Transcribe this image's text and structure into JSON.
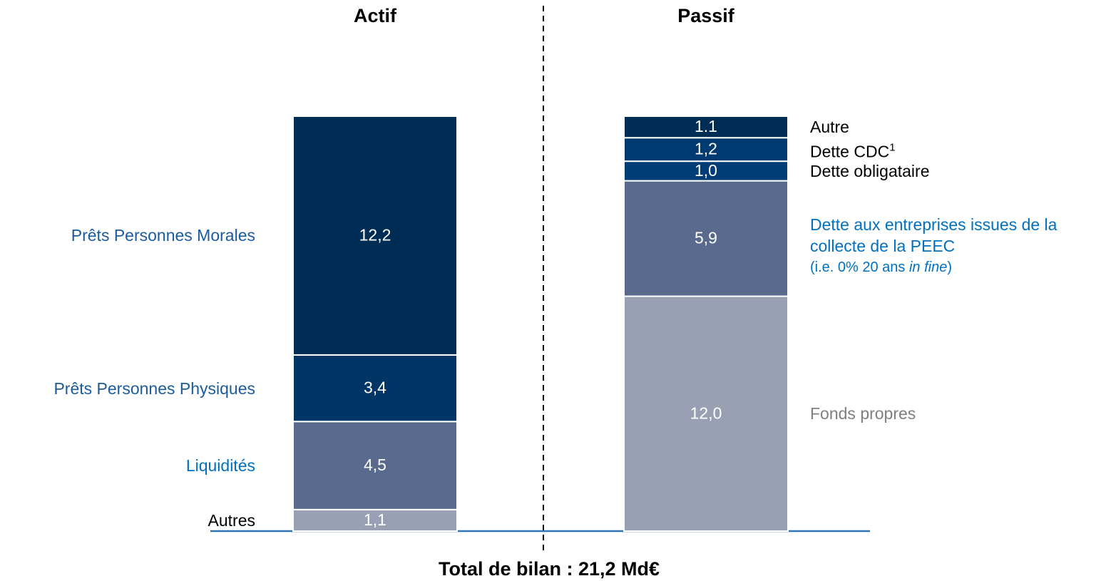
{
  "chart_data": {
    "type": "bar",
    "stacked": true,
    "categories": [
      "Actif",
      "Passif"
    ],
    "series": [
      {
        "name": "Autres",
        "color": "#9aa0b3",
        "label_color": "#000000",
        "values": [
          1.1,
          null
        ],
        "value_labels": [
          "1,1",
          null
        ]
      },
      {
        "name": "Liquidités",
        "color": "#5a6a8c",
        "label_color": "#0070c0",
        "values": [
          4.5,
          null
        ],
        "value_labels": [
          "4,5",
          null
        ]
      },
      {
        "name": "Prêts Personnes Physiques",
        "color": "#003566",
        "label_color": "#1a5c9e",
        "values": [
          3.4,
          null
        ],
        "value_labels": [
          "3,4",
          null
        ]
      },
      {
        "name": "Prêts Personnes Morales",
        "color": "#002d56",
        "label_color": "#1a5c9e",
        "values": [
          12.2,
          null
        ],
        "value_labels": [
          "12,2",
          null
        ]
      },
      {
        "name": "Fonds propres",
        "color": "#9aa0b3",
        "label_color": "#7f7f7f",
        "values": [
          null,
          12.0
        ],
        "value_labels": [
          null,
          "12,0"
        ]
      },
      {
        "name": "Dette aux entreprises issues de la collecte de la PEEC",
        "note": "(i.e. 0% 20 ans ",
        "note_italic": "in fine",
        "note_end": ")",
        "color": "#5a6a8c",
        "label_color": "#0070c0",
        "values": [
          null,
          5.9
        ],
        "value_labels": [
          null,
          "5,9"
        ]
      },
      {
        "name": "Dette obligataire",
        "color": "#003c75",
        "label_color": "#000000",
        "values": [
          null,
          1.0
        ],
        "value_labels": [
          null,
          "1,0"
        ]
      },
      {
        "name": "Dette CDC",
        "footnote": "1",
        "color": "#003a70",
        "label_color": "#000000",
        "values": [
          null,
          1.2
        ],
        "value_labels": [
          null,
          "1,2"
        ]
      },
      {
        "name": "Autre",
        "color": "#002d56",
        "label_color": "#000000",
        "values": [
          null,
          1.1
        ]
      }
    ],
    "footer": "Total de bilan : 21,2 Md€"
  }
}
